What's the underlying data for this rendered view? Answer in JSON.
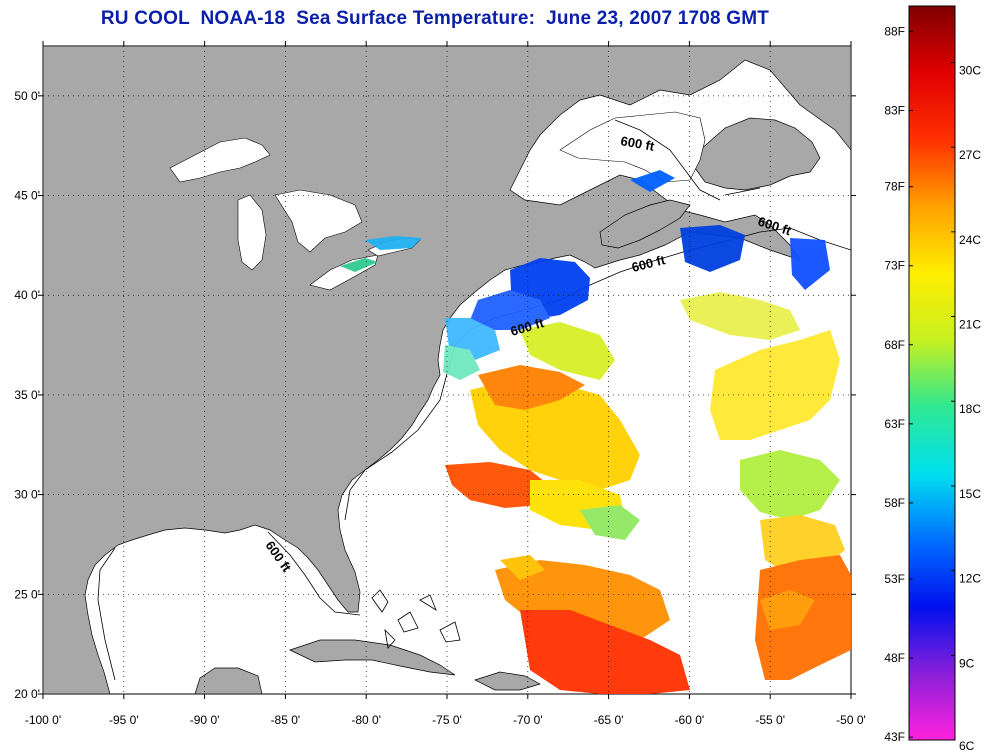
{
  "title": "RU COOL  NOAA-18  Sea Surface Temperature:  June 23, 2007 1708 GMT",
  "map": {
    "lon_range": [
      -100,
      -50
    ],
    "lat_range": [
      20,
      52.5
    ],
    "grid": true,
    "lon_ticks": [
      {
        "v": -100,
        "label": "-100 0'"
      },
      {
        "v": -95,
        "label": "-95 0'"
      },
      {
        "v": -90,
        "label": "-90 0'"
      },
      {
        "v": -85,
        "label": "-85 0'"
      },
      {
        "v": -80,
        "label": "-80 0'"
      },
      {
        "v": -75,
        "label": "-75 0'"
      },
      {
        "v": -70,
        "label": "-70 0'"
      },
      {
        "v": -65,
        "label": "-65 0'"
      },
      {
        "v": -60,
        "label": "-60 0'"
      },
      {
        "v": -55,
        "label": "-55 0'"
      },
      {
        "v": -50,
        "label": "-50 0'"
      }
    ],
    "lat_ticks": [
      {
        "v": 20,
        "label": "20 0'"
      },
      {
        "v": 25,
        "label": "25 0'"
      },
      {
        "v": 30,
        "label": "30 0'"
      },
      {
        "v": 35,
        "label": "35 0'"
      },
      {
        "v": 40,
        "label": "40 0'"
      },
      {
        "v": 45,
        "label": "45 0'"
      },
      {
        "v": 50,
        "label": "50 0'"
      }
    ],
    "land_color": "#a8a8a8",
    "water_color": "#ffffff",
    "isobath_label": "600 ft"
  },
  "colorbar": {
    "c_range": [
      6,
      32
    ],
    "f_labels": [
      {
        "c": 6.1,
        "label": "43F"
      },
      {
        "c": 8.9,
        "label": "48F"
      },
      {
        "c": 11.7,
        "label": "53F"
      },
      {
        "c": 14.4,
        "label": "58F"
      },
      {
        "c": 17.2,
        "label": "63F"
      },
      {
        "c": 20.0,
        "label": "68F"
      },
      {
        "c": 22.8,
        "label": "73F"
      },
      {
        "c": 25.6,
        "label": "78F"
      },
      {
        "c": 28.3,
        "label": "83F"
      },
      {
        "c": 31.1,
        "label": "88F"
      }
    ],
    "c_labels": [
      {
        "c": 6,
        "label": "6C"
      },
      {
        "c": 9,
        "label": "9C"
      },
      {
        "c": 12,
        "label": "12C"
      },
      {
        "c": 15,
        "label": "15C"
      },
      {
        "c": 18,
        "label": "18C"
      },
      {
        "c": 21,
        "label": "21C"
      },
      {
        "c": 24,
        "label": "24C"
      },
      {
        "c": 27,
        "label": "27C"
      },
      {
        "c": 30,
        "label": "30C"
      }
    ],
    "colors": [
      "#ff22dd",
      "#8820d8",
      "#0010ee",
      "#0070ff",
      "#00e0ee",
      "#30e890",
      "#c8f020",
      "#ffee00",
      "#ffa000",
      "#ff3000",
      "#e00000",
      "#800000"
    ]
  }
}
